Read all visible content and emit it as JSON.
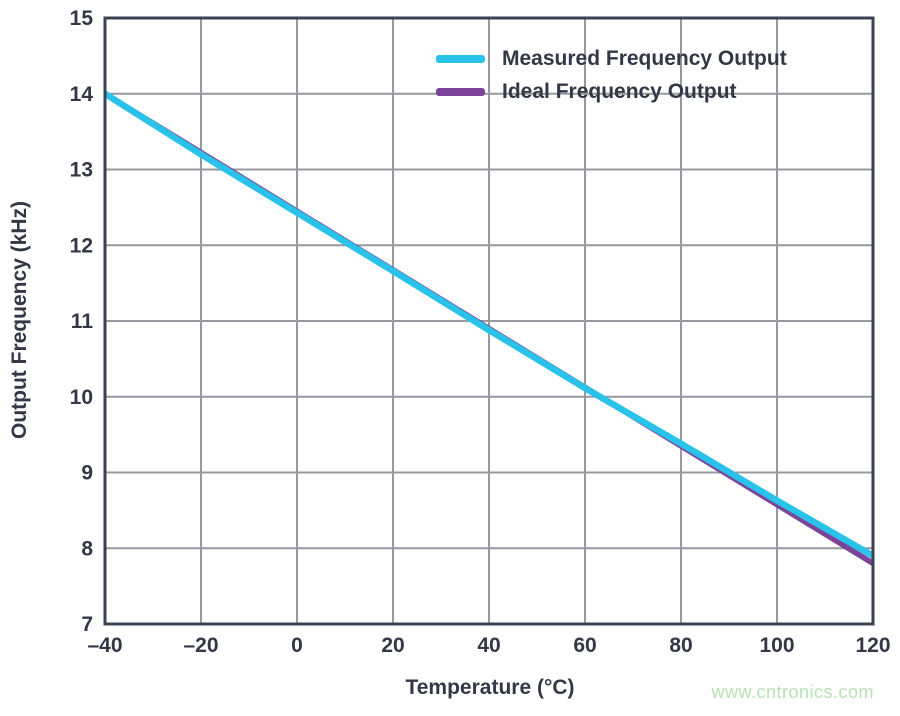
{
  "chart_data": {
    "type": "line",
    "title": "",
    "xlabel": "Temperature (°C)",
    "ylabel": "Output Frequency (kHz)",
    "xlim": [
      -40,
      120
    ],
    "ylim": [
      7,
      15
    ],
    "xticks": [
      -40,
      -20,
      0,
      20,
      40,
      60,
      80,
      100,
      120
    ],
    "xtick_labels": [
      "–40",
      "–20",
      "0",
      "20",
      "40",
      "60",
      "80",
      "100",
      "120"
    ],
    "yticks": [
      7,
      8,
      9,
      10,
      11,
      12,
      13,
      14,
      15
    ],
    "ytick_labels": [
      "7",
      "8",
      "9",
      "10",
      "11",
      "12",
      "13",
      "14",
      "15"
    ],
    "grid": true,
    "legend_position": "top-center-inside",
    "x": [
      -40,
      -20,
      0,
      20,
      40,
      60,
      80,
      100,
      120
    ],
    "series": [
      {
        "name": "Ideal Frequency Output",
        "values": [
          14.0,
          13.225,
          12.45,
          11.675,
          10.9,
          10.125,
          9.35,
          8.575,
          7.8
        ],
        "color": "#7b4399",
        "width": 5.5
      },
      {
        "name": "Measured Frequency Output",
        "values": [
          14.0,
          13.2,
          12.43,
          11.66,
          10.88,
          10.115,
          9.38,
          8.63,
          7.9
        ],
        "color": "#29c3ea",
        "width": 6.5
      }
    ],
    "colors": {
      "frame": "#3a4150",
      "gridline": "#97999f",
      "tick_text": "#333847",
      "background": "#ffffff"
    }
  },
  "legend": {
    "items": [
      {
        "label": "Measured Frequency Output",
        "color": "#29c3ea"
      },
      {
        "label": "Ideal Frequency Output",
        "color": "#7b4399"
      }
    ]
  },
  "watermark": {
    "text": "www.cntronics.com",
    "color": "#b7e3b2"
  }
}
